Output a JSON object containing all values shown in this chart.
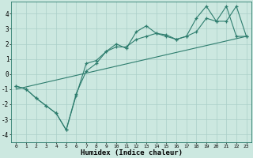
{
  "xlabel": "Humidex (Indice chaleur)",
  "background_color": "#cce8e0",
  "grid_color": "#aacfc8",
  "line_color": "#2e7d6e",
  "xlim": [
    -0.5,
    23.5
  ],
  "ylim": [
    -4.5,
    4.8
  ],
  "yticks": [
    -4,
    -3,
    -2,
    -1,
    0,
    1,
    2,
    3,
    4
  ],
  "xticks": [
    0,
    1,
    2,
    3,
    4,
    5,
    6,
    7,
    8,
    9,
    10,
    11,
    12,
    13,
    14,
    15,
    16,
    17,
    18,
    19,
    20,
    21,
    22,
    23
  ],
  "series1_x": [
    0,
    1,
    2,
    3,
    4,
    5,
    6,
    7,
    8,
    9,
    10,
    11,
    12,
    13,
    14,
    15,
    16,
    17,
    18,
    19,
    20,
    21,
    22,
    23
  ],
  "series1_y": [
    -0.8,
    -1.0,
    -1.6,
    -2.1,
    -2.6,
    -3.7,
    -1.4,
    0.7,
    0.9,
    1.5,
    2.0,
    1.7,
    2.8,
    3.2,
    2.7,
    2.6,
    2.3,
    2.5,
    3.7,
    4.5,
    3.5,
    4.5,
    2.5,
    2.5
  ],
  "series2_x": [
    0,
    1,
    2,
    3,
    4,
    5,
    6,
    7,
    8,
    9,
    10,
    11,
    12,
    13,
    14,
    15,
    16,
    17,
    18,
    19,
    20,
    21,
    22,
    23
  ],
  "series2_y": [
    -0.8,
    -1.0,
    -1.6,
    -2.1,
    -2.6,
    -3.7,
    -1.3,
    0.2,
    0.7,
    1.5,
    1.8,
    1.8,
    2.3,
    2.5,
    2.7,
    2.5,
    2.3,
    2.5,
    2.8,
    3.7,
    3.5,
    3.5,
    4.5,
    2.5
  ],
  "trend_x": [
    0,
    23
  ],
  "trend_y": [
    -1.0,
    2.5
  ]
}
